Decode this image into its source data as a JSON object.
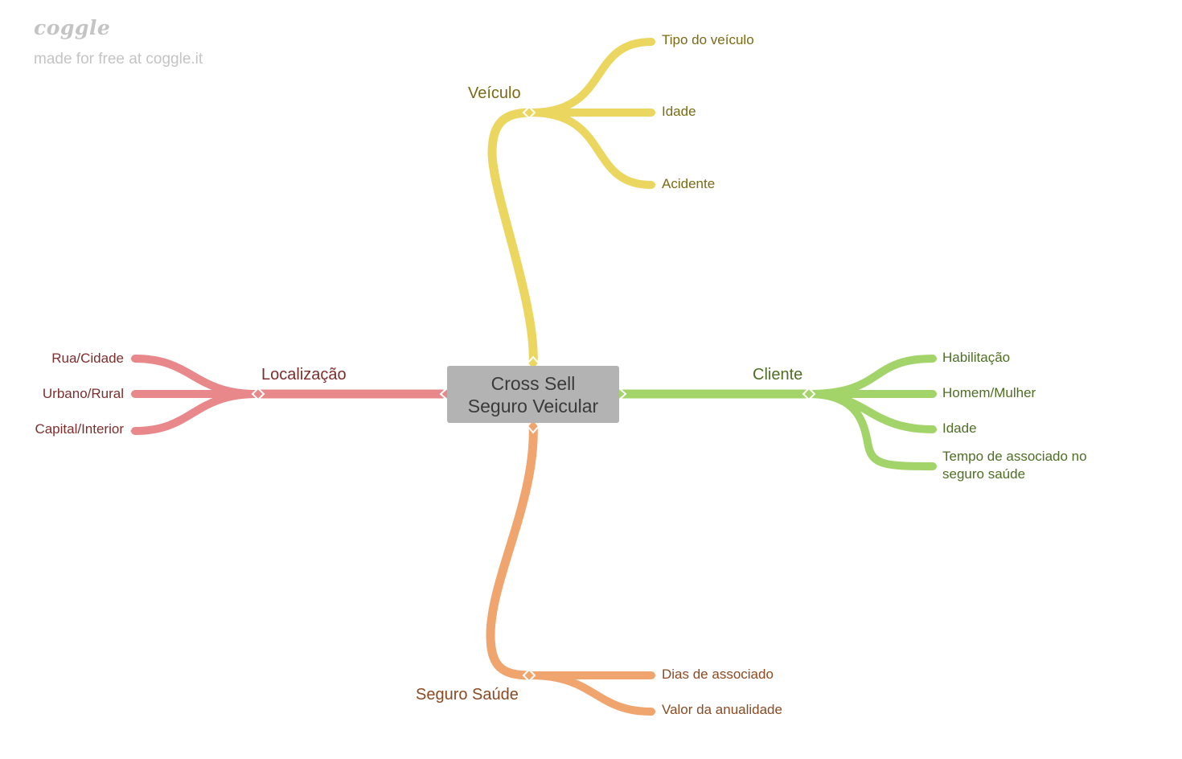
{
  "brand": {
    "logo": "coggle",
    "tagline": "made for free at coggle.it"
  },
  "center": {
    "line1": "Cross Sell",
    "line2": "Seguro Veicular"
  },
  "branches": {
    "veiculo": {
      "label": "Veículo",
      "color": "#ebd75f",
      "text_color": "#7a6a14",
      "leaves": [
        "Tipo do veículo",
        "Idade",
        "Acidente"
      ]
    },
    "cliente": {
      "label": "Cliente",
      "color": "#a3d46a",
      "text_color": "#4e6e25",
      "leaves": [
        "Habilitação",
        "Homem/Mulher",
        "Idade",
        "Tempo de associado no",
        "seguro saúde"
      ]
    },
    "localizacao": {
      "label": "Localização",
      "color": "#e8888a",
      "text_color": "#7d2e2c",
      "leaves": [
        "Rua/Cidade",
        "Urbano/Rural",
        "Capital/Interior"
      ]
    },
    "seguro_saude": {
      "label": "Seguro Saúde",
      "color": "#f0a46e",
      "text_color": "#8a4a22",
      "leaves": [
        "Dias de associado",
        "Valor da anualidade"
      ]
    }
  }
}
